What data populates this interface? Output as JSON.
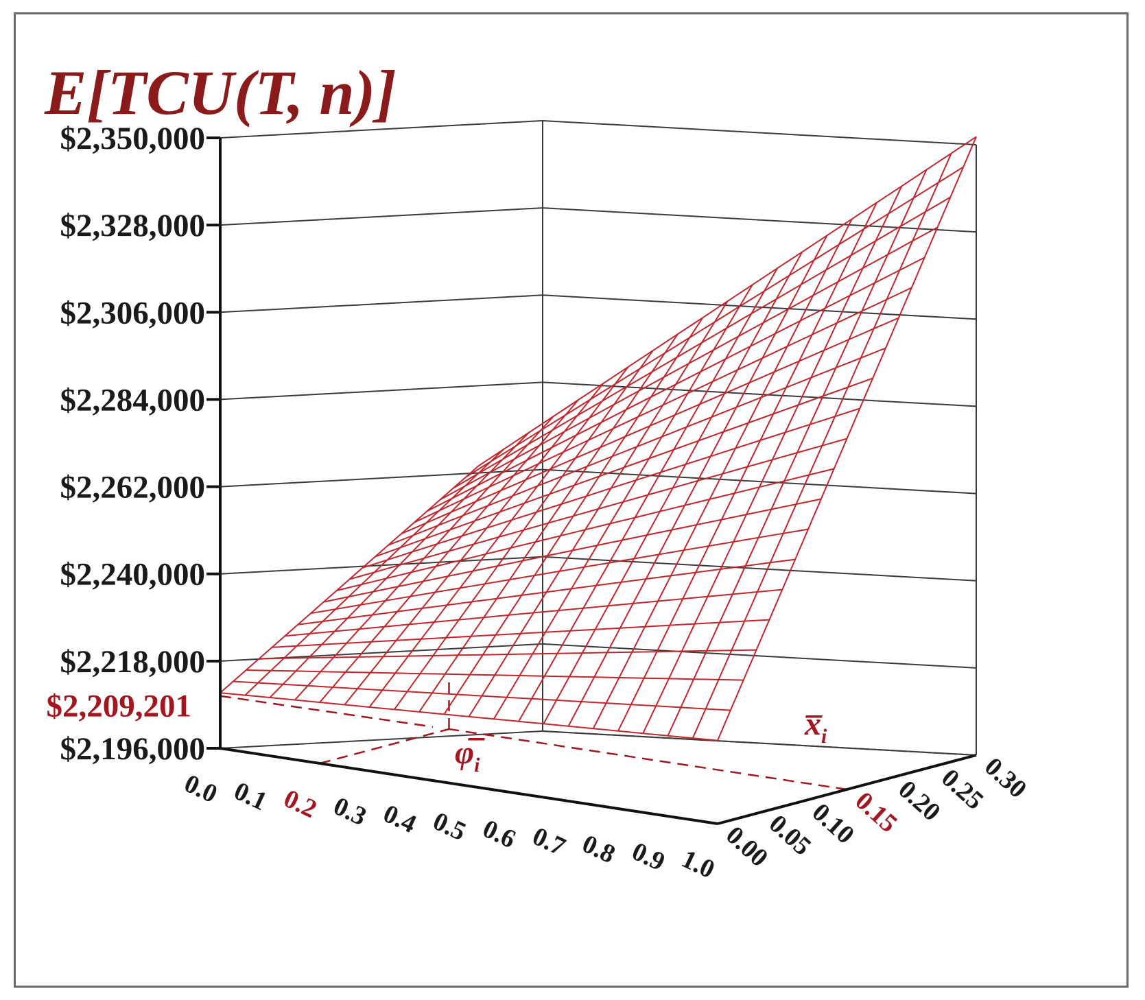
{
  "chart_data": {
    "type": "surface",
    "title": "E[TCU(T, n)]",
    "zlim": [
      2196000,
      2350000
    ],
    "z_ticks": [
      "$2,350,000",
      "$2,328,000",
      "$2,306,000",
      "$2,284,000",
      "$2,262,000",
      "$2,240,000",
      "$2,218,000",
      "$2,196,000"
    ],
    "z_tick_values": [
      2350000,
      2328000,
      2306000,
      2284000,
      2262000,
      2240000,
      2218000,
      2196000
    ],
    "z_highlight": {
      "label": "$2,209,201",
      "value": 2209201
    },
    "x_axis": {
      "label": "φ̅",
      "label_sub": "i",
      "ticks": [
        "0.0",
        "0.1",
        "0.2",
        "0.3",
        "0.4",
        "0.5",
        "0.6",
        "0.7",
        "0.8",
        "0.9",
        "1.0"
      ],
      "range": [
        0,
        1
      ],
      "highlight": "0.2"
    },
    "y_axis": {
      "label": "x̅",
      "label_sub": "i",
      "ticks": [
        "0.00",
        "0.05",
        "0.10",
        "0.15",
        "0.20",
        "0.25",
        "0.30"
      ],
      "range": [
        0,
        0.3
      ],
      "highlight": "0.15"
    },
    "surface_corners": {
      "phi0_x0": 2210000,
      "phi1_x0": 2217000,
      "phi0_x03": 2250000,
      "phi1_x03": 2352000
    },
    "optimum": {
      "phi": 0.2,
      "x": 0.15,
      "value": 2209201
    },
    "grid": true,
    "mesh_color": "#c0262c",
    "highlight_color": "#a3161f",
    "title_color": "#8b1a1a"
  }
}
